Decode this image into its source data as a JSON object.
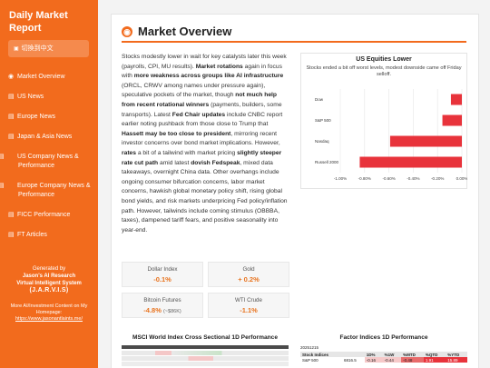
{
  "sidebar": {
    "title": "Daily Market Report",
    "lang_button": "切換到中文",
    "items": [
      {
        "icon": "globe-icon",
        "glyph": "◉",
        "label": "Market Overview"
      },
      {
        "icon": "flag-icon",
        "glyph": "▤",
        "label": "US News"
      },
      {
        "icon": "flag-icon",
        "glyph": "▤",
        "label": "Europe News"
      },
      {
        "icon": "flag-icon",
        "glyph": "▤",
        "label": "Japan & Asia News"
      },
      {
        "icon": "flag-icon",
        "glyph": "▤",
        "label": "US Company News & Performance"
      },
      {
        "icon": "flag-icon",
        "glyph": "▤",
        "label": "Europe Company News & Performance"
      },
      {
        "icon": "chart-icon",
        "glyph": "▤",
        "label": "FICC Performance"
      },
      {
        "icon": "chart-icon",
        "glyph": "▤",
        "label": "FT Articles"
      }
    ],
    "brand_line1": "Generated by",
    "brand_line2": "Jason's AI Research",
    "brand_line3": "Virtual Intelligent System",
    "brand_line4": "(J.A.R.V.I.S)",
    "promo_line1": "More AI/Investment Content on My",
    "promo_line2": "Homepage:",
    "promo_link": "https://www.jasonantlaints.me/"
  },
  "main": {
    "title": "Market Overview",
    "paragraph_html": "Stocks modestly lower in wait for key catalysts later this week (payrolls, CPI, MU results). <b>Market rotations</b> again in focus with <b>more weakness across groups like AI infrastructure</b> (ORCL, CRWV among names under pressure again), speculative pockets of the market, though <b>not much help from recent rotational winners</b> (payments, builders, some transports). Latest <b>Fed Chair updates</b> include CNBC report earlier noting pushback from those close to Trump that <b>Hassett may be too close to president</b>, mirroring recent investor concerns over bond market implications. However, <b>rates</b> a bit of a tailwind with market pricing <b>slightly steeper rate cut path</b> amid latest <b>dovish Fedspeak</b>, mixed data takeaways, overnight China data. Other overhangs include ongoing consumer bifurcation concerns, labor market concerns, hawkish global monetary policy shift, rising global bond yields, and risk markets underpricing Fed policy/inflation path. However, tailwinds include coming stimulus (OBBBA, taxes), dampened tariff fears, and positive seasonality into year-end."
  },
  "metrics": [
    {
      "label": "Dollar Index",
      "value": "-0.1%",
      "sub": ""
    },
    {
      "label": "Gold",
      "value": "+ 0.2%",
      "sub": ""
    },
    {
      "label": "Bitcoin Futures",
      "value": "-4.8%",
      "sub": "(~$86K)"
    },
    {
      "label": "WTI Crude",
      "value": "-1.1%",
      "sub": ""
    }
  ],
  "chart_data": {
    "type": "bar",
    "orientation": "horizontal",
    "title": "US Equities Lower",
    "subtitle": "Stocks ended a bit off worst levels, modest downside came off Friday selloff.",
    "categories": [
      "Dow",
      "S&P 500",
      "Nasdaq",
      "Russell 2000"
    ],
    "values": [
      -0.09,
      -0.16,
      -0.59,
      -0.84
    ],
    "xlim": [
      -1.0,
      0.0
    ],
    "ticks": [
      -1.0,
      -0.8,
      -0.6,
      -0.4,
      -0.2,
      0.0
    ],
    "tick_labels": [
      "-1.00%",
      "-0.80%",
      "-0.60%",
      "-0.40%",
      "-0.20%",
      "0.00%"
    ],
    "bar_color": "#e8333b",
    "grid": true
  },
  "bottom": {
    "left_title": "MSCI World Index Cross Sectional 1D Performance",
    "right_title": "Factor Indices 1D Performance",
    "right_table": {
      "date": "20251215",
      "header": [
        "Stock Indices",
        "",
        "1D%",
        "%1W",
        "%MTD",
        "%QTD",
        "%YTD"
      ],
      "row": [
        "S&P 500",
        "6816.5",
        "-0.16",
        "-0.44",
        "-0.48",
        "1.91",
        "15.89"
      ]
    }
  },
  "colors": {
    "accent": "#f26b1d",
    "negative_bar": "#e8333b",
    "value_text": "#e8731e"
  }
}
